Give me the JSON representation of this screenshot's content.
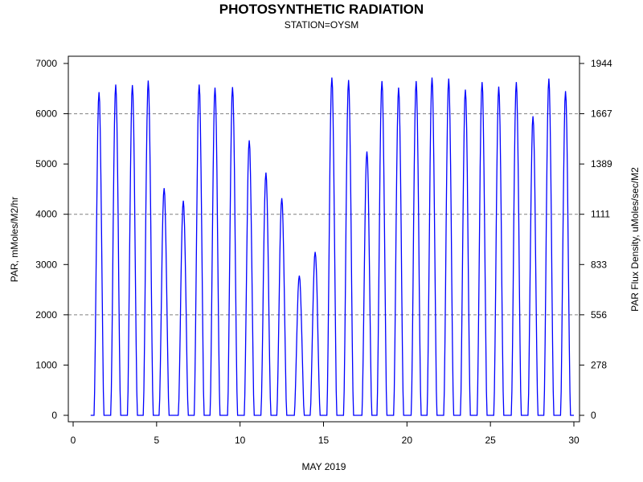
{
  "chart_data": {
    "type": "line",
    "title": "PHOTOSYNTHETIC RADIATION",
    "subtitle": "STATION=OYSM",
    "xlabel": "MAY 2019",
    "ylabel": "PAR, mMoles/M2/hr",
    "y2label": "PAR Flux Density, uMoles/sec/M2",
    "xlim": [
      0,
      30
    ],
    "ylim": [
      -150,
      7150
    ],
    "x_ticks": [
      0,
      5,
      10,
      15,
      20,
      25,
      30
    ],
    "x_tick_labels": [
      "0",
      "5",
      "10",
      "15",
      "20",
      "25",
      "30"
    ],
    "y_ticks": [
      0,
      1000,
      2000,
      3000,
      4000,
      5000,
      6000,
      7000
    ],
    "y_tick_labels": [
      "0",
      "1000",
      "2000",
      "3000",
      "4000",
      "5000",
      "6000",
      "7000"
    ],
    "y2_tick_labels": [
      "0",
      "278",
      "556",
      "833",
      "1111",
      "1389",
      "1667",
      "1944"
    ],
    "gridlines_y": [
      2000,
      4000,
      6000
    ],
    "line_color": "#0000ff",
    "series": [
      {
        "daily_peaks": [
          {
            "x": 1.55,
            "y": 6430
          },
          {
            "x": 2.55,
            "y": 6580
          },
          {
            "x": 3.55,
            "y": 6570
          },
          {
            "x": 4.5,
            "y": 6660
          },
          {
            "x": 5.45,
            "y": 4520
          },
          {
            "x": 6.6,
            "y": 4270
          },
          {
            "x": 7.55,
            "y": 6580
          },
          {
            "x": 8.5,
            "y": 6520
          },
          {
            "x": 9.55,
            "y": 6530
          },
          {
            "x": 10.55,
            "y": 5470
          },
          {
            "x": 11.55,
            "y": 4830
          },
          {
            "x": 12.5,
            "y": 4320
          },
          {
            "x": 13.55,
            "y": 2780
          },
          {
            "x": 14.5,
            "y": 3250
          },
          {
            "x": 15.5,
            "y": 6720
          },
          {
            "x": 16.5,
            "y": 6670
          },
          {
            "x": 17.6,
            "y": 5250
          },
          {
            "x": 18.5,
            "y": 6650
          },
          {
            "x": 19.5,
            "y": 6520
          },
          {
            "x": 20.55,
            "y": 6650
          },
          {
            "x": 21.5,
            "y": 6720
          },
          {
            "x": 22.5,
            "y": 6700
          },
          {
            "x": 23.5,
            "y": 6480
          },
          {
            "x": 24.5,
            "y": 6630
          },
          {
            "x": 25.5,
            "y": 6540
          },
          {
            "x": 26.55,
            "y": 6630
          },
          {
            "x": 27.55,
            "y": 5950
          },
          {
            "x": 28.5,
            "y": 6700
          },
          {
            "x": 29.5,
            "y": 6450
          }
        ],
        "nights_flat_at": 0,
        "x_start": 1.05,
        "x_end": 30.0
      }
    ]
  }
}
